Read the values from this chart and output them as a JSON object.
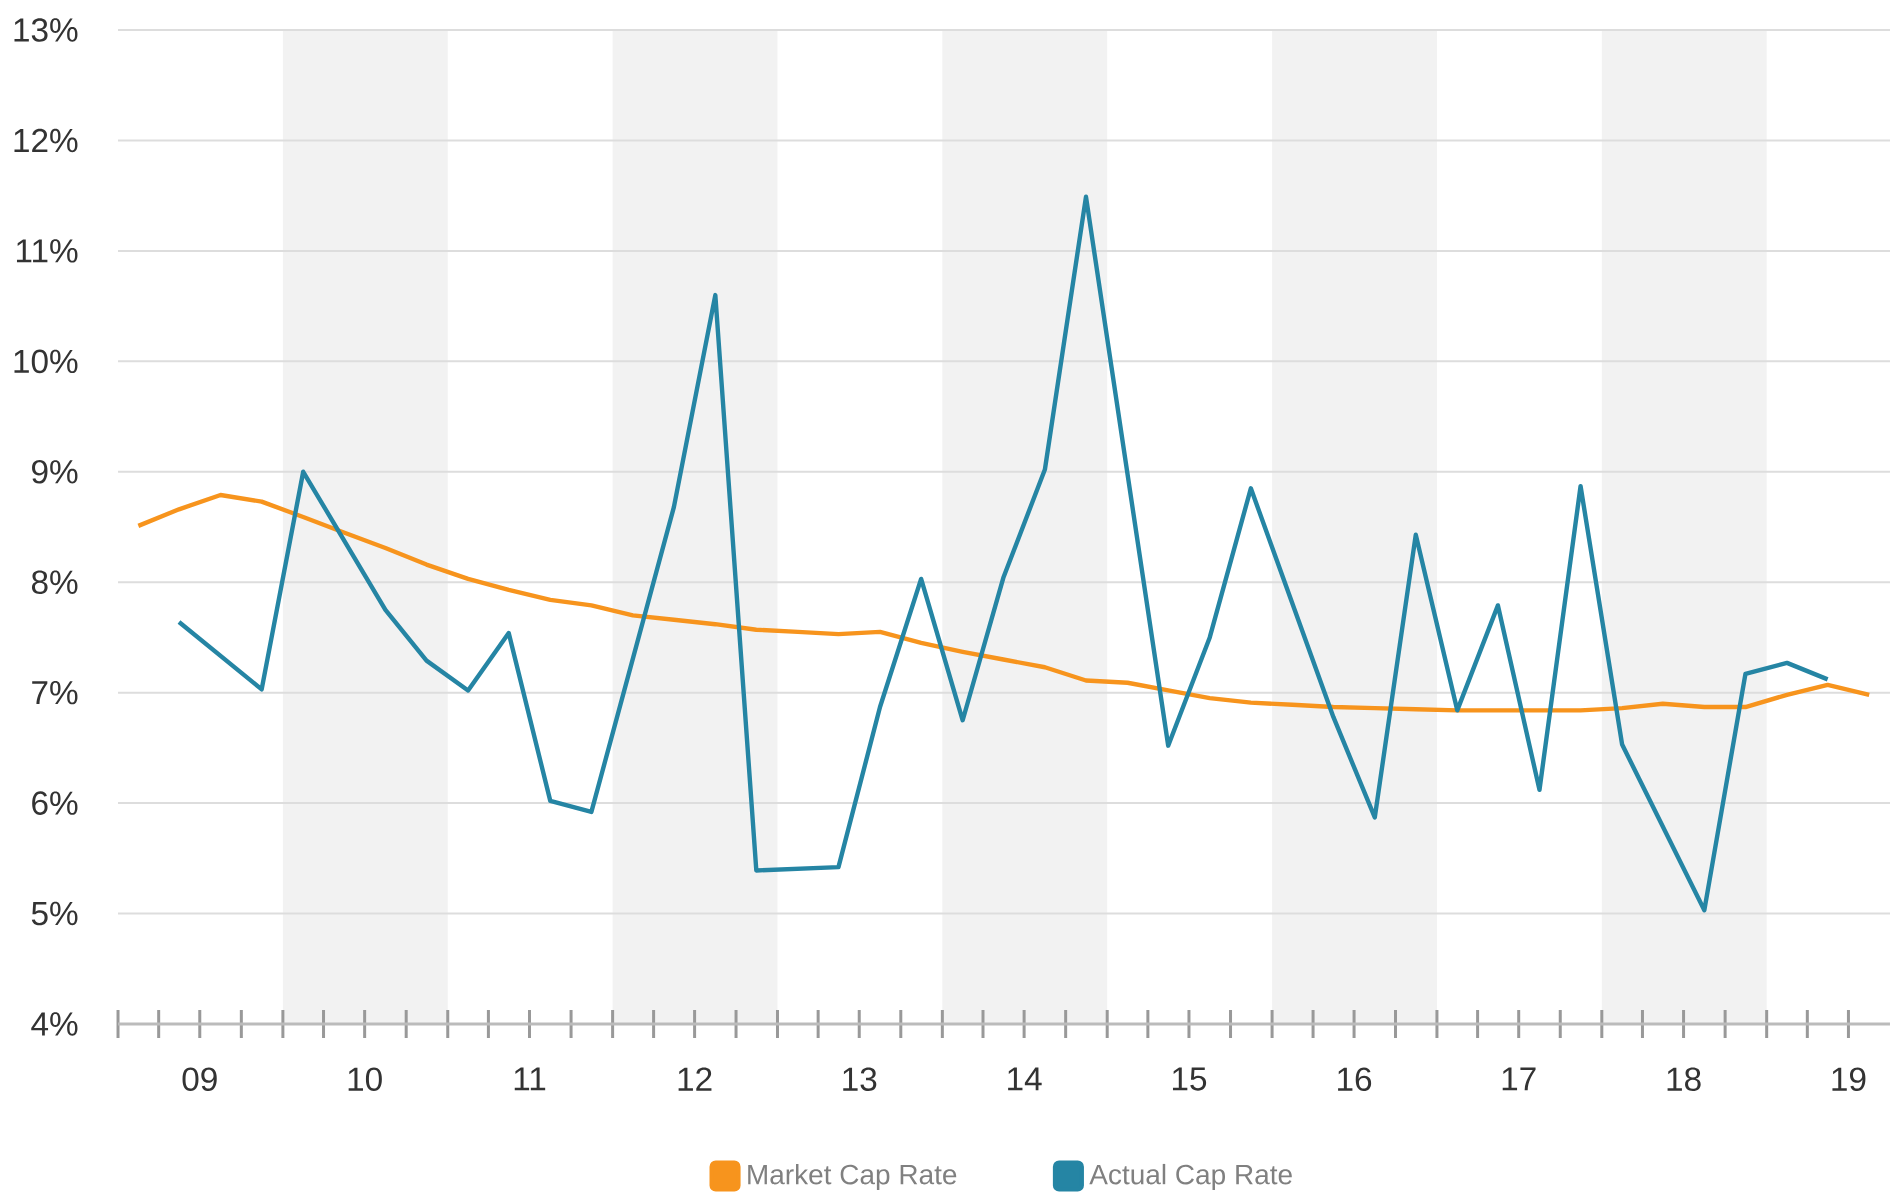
{
  "chart_data": {
    "type": "line",
    "series": [
      {
        "name": "Market Cap Rate",
        "color": "#f7941d",
        "line_style": "solid",
        "x": [
          "2009-02-15",
          "2009-05-16",
          "2009-08-16",
          "2009-11-15",
          "2010-02-15",
          "2010-05-16",
          "2010-08-16",
          "2010-11-15",
          "2011-02-15",
          "2011-05-16",
          "2011-08-16",
          "2011-11-15",
          "2012-02-15",
          "2012-05-16",
          "2012-08-16",
          "2012-11-15",
          "2013-02-15",
          "2013-05-16",
          "2013-08-16",
          "2013-11-15",
          "2014-02-15",
          "2014-05-16",
          "2014-08-16",
          "2014-11-15",
          "2015-02-15",
          "2015-05-16",
          "2015-08-16",
          "2015-11-15",
          "2016-02-15",
          "2016-05-16",
          "2016-08-16",
          "2016-11-15",
          "2017-02-15",
          "2017-05-16",
          "2017-08-16",
          "2017-11-15",
          "2018-02-15",
          "2018-05-16",
          "2018-08-16",
          "2018-11-15",
          "2019-02-15",
          "2019-05-16",
          "2019-08-16"
        ],
        "values": [
          8.51,
          8.66,
          8.79,
          8.73,
          8.59,
          8.45,
          8.31,
          8.16,
          8.03,
          7.93,
          7.84,
          7.79,
          7.7,
          7.66,
          7.62,
          7.57,
          7.55,
          7.53,
          7.55,
          7.45,
          7.37,
          7.3,
          7.23,
          7.11,
          7.09,
          7.02,
          6.95,
          6.91,
          6.89,
          6.87,
          6.86,
          6.85,
          6.84,
          6.84,
          6.84,
          6.84,
          6.86,
          6.9,
          6.87,
          6.87,
          6.98,
          7.07,
          6.98
        ]
      },
      {
        "name": "Actual Cap Rate",
        "color": "#2585a4",
        "line_style": "solid",
        "x": [
          "2009-05-16",
          "2009-11-15",
          "2010-02-15",
          "2010-08-16",
          "2010-11-15",
          "2011-02-15",
          "2011-05-16",
          "2011-08-16",
          "2011-11-15",
          "2012-05-16",
          "2012-08-16",
          "2012-11-15",
          "2013-05-16",
          "2013-08-16",
          "2013-11-15",
          "2014-02-15",
          "2014-05-16",
          "2014-08-16",
          "2014-11-15",
          "2015-05-16",
          "2015-08-16",
          "2015-11-15",
          "2016-05-16",
          "2016-08-16",
          "2016-11-15",
          "2017-02-15",
          "2017-05-16",
          "2017-08-16",
          "2017-11-15",
          "2018-02-15",
          "2018-08-16",
          "2018-11-15",
          "2019-02-15",
          "2019-05-16"
        ],
        "values": [
          7.64,
          7.03,
          9.0,
          7.75,
          7.29,
          7.02,
          7.54,
          6.02,
          5.92,
          8.68,
          10.6,
          5.39,
          5.42,
          6.87,
          8.03,
          6.75,
          8.04,
          9.02,
          11.49,
          6.52,
          7.5,
          8.85,
          6.78,
          5.87,
          8.43,
          6.84,
          7.79,
          6.12,
          8.87,
          6.53,
          5.03,
          7.17,
          7.27,
          7.12
        ]
      }
    ],
    "xlim": [
      "2009-01-01",
      "2019-10-01"
    ],
    "ylim": [
      4,
      13
    ],
    "xticks": [
      {
        "value": "2009-01-01",
        "label": null
      },
      {
        "value": "2009-04-01",
        "label": null
      },
      {
        "value": "2009-07-01",
        "label": "09"
      },
      {
        "value": "2009-10-01",
        "label": null
      },
      {
        "value": "2010-01-01",
        "label": null
      },
      {
        "value": "2010-04-01",
        "label": null
      },
      {
        "value": "2010-07-01",
        "label": "10"
      },
      {
        "value": "2010-10-01",
        "label": null
      },
      {
        "value": "2011-01-01",
        "label": null
      },
      {
        "value": "2011-04-01",
        "label": null
      },
      {
        "value": "2011-07-01",
        "label": "11"
      },
      {
        "value": "2011-10-01",
        "label": null
      },
      {
        "value": "2012-01-01",
        "label": null
      },
      {
        "value": "2012-04-01",
        "label": null
      },
      {
        "value": "2012-07-01",
        "label": "12"
      },
      {
        "value": "2012-10-01",
        "label": null
      },
      {
        "value": "2013-01-01",
        "label": null
      },
      {
        "value": "2013-04-01",
        "label": null
      },
      {
        "value": "2013-07-01",
        "label": "13"
      },
      {
        "value": "2013-10-01",
        "label": null
      },
      {
        "value": "2014-01-01",
        "label": null
      },
      {
        "value": "2014-04-01",
        "label": null
      },
      {
        "value": "2014-07-01",
        "label": "14"
      },
      {
        "value": "2014-10-01",
        "label": null
      },
      {
        "value": "2015-01-01",
        "label": null
      },
      {
        "value": "2015-04-01",
        "label": null
      },
      {
        "value": "2015-07-01",
        "label": "15"
      },
      {
        "value": "2015-10-01",
        "label": null
      },
      {
        "value": "2016-01-01",
        "label": null
      },
      {
        "value": "2016-04-01",
        "label": null
      },
      {
        "value": "2016-07-01",
        "label": "16"
      },
      {
        "value": "2016-10-01",
        "label": null
      },
      {
        "value": "2017-01-01",
        "label": null
      },
      {
        "value": "2017-04-01",
        "label": null
      },
      {
        "value": "2017-07-01",
        "label": "17"
      },
      {
        "value": "2017-10-01",
        "label": null
      },
      {
        "value": "2018-01-01",
        "label": null
      },
      {
        "value": "2018-04-01",
        "label": null
      },
      {
        "value": "2018-07-01",
        "label": "18"
      },
      {
        "value": "2018-10-01",
        "label": null
      },
      {
        "value": "2019-01-01",
        "label": null
      },
      {
        "value": "2019-04-01",
        "label": null
      },
      {
        "value": "2019-07-01",
        "label": "19"
      }
    ],
    "yticks": [
      {
        "value": 4,
        "label": "4%"
      },
      {
        "value": 5,
        "label": "5%"
      },
      {
        "value": 6,
        "label": "6%"
      },
      {
        "value": 7,
        "label": "7%"
      },
      {
        "value": 8,
        "label": "8%"
      },
      {
        "value": 9,
        "label": "9%"
      },
      {
        "value": 10,
        "label": "10%"
      },
      {
        "value": 11,
        "label": "11%"
      },
      {
        "value": 12,
        "label": "12%"
      },
      {
        "value": 13,
        "label": "13%"
      }
    ],
    "bands": [
      {
        "axis": "x",
        "from": "2010-01-01",
        "to": "2011-01-01",
        "color": "#f2f2f2"
      },
      {
        "axis": "x",
        "from": "2012-01-01",
        "to": "2013-01-01",
        "color": "#f2f2f2"
      },
      {
        "axis": "x",
        "from": "2014-01-01",
        "to": "2015-01-01",
        "color": "#f2f2f2"
      },
      {
        "axis": "x",
        "from": "2016-01-01",
        "to": "2017-01-01",
        "color": "#f2f2f2"
      },
      {
        "axis": "x",
        "from": "2018-01-01",
        "to": "2019-01-01",
        "color": "#f2f2f2"
      }
    ],
    "grid": "y",
    "legend": "bottom",
    "marker": "none"
  }
}
